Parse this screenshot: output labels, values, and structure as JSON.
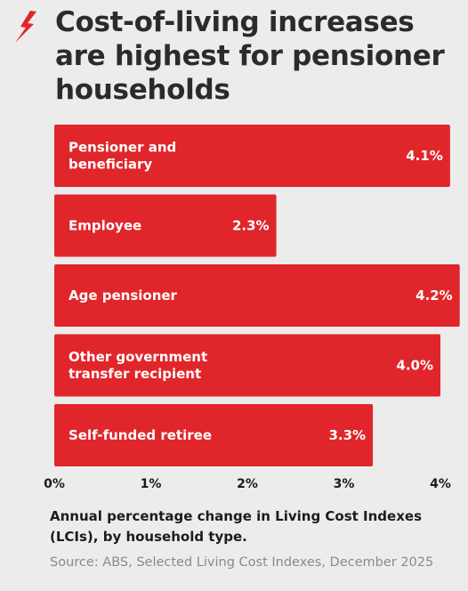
{
  "header": {
    "title": "Cost-of-living increases are highest for pensioner households"
  },
  "colors": {
    "bar": "#e0262a",
    "logo": "#e0262a",
    "text": "#2b2b2b",
    "source": "#8a8a8a"
  },
  "icons": {
    "logo": "brand-logo-icon"
  },
  "chart_data": {
    "type": "bar",
    "orientation": "horizontal",
    "title": "Cost-of-living increases are highest for pensioner households",
    "categories": [
      [
        "Pensioner and",
        "beneficiary"
      ],
      [
        "Employee"
      ],
      [
        "Age pensioner"
      ],
      [
        "Other government",
        "transfer recipient"
      ],
      [
        "Self-funded retiree"
      ]
    ],
    "values": [
      4.1,
      2.3,
      4.2,
      4.0,
      3.3
    ],
    "value_labels": [
      "4.1%",
      "2.3%",
      "4.2%",
      "4.0%",
      "3.3%"
    ],
    "xlim": [
      0,
      4.2
    ],
    "xticks": [
      0,
      1,
      2,
      3,
      4
    ],
    "xtick_labels": [
      "0%",
      "1%",
      "2%",
      "3%",
      "4%"
    ],
    "grid": false,
    "legend": "none"
  },
  "caption": "Annual percentage change in Living Cost Indexes (LCIs), by household type.",
  "source": "Source: ABS, Selected Living Cost Indexes, December 2025"
}
